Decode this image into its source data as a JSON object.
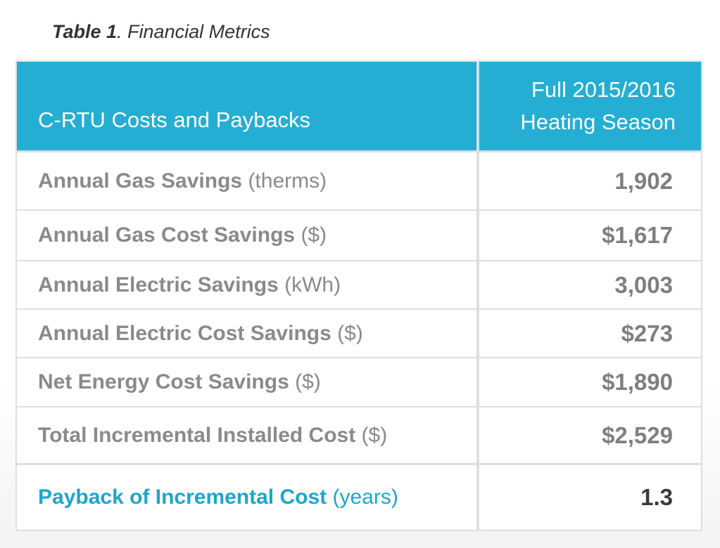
{
  "caption": {
    "bold": "Table 1",
    "rest": ". Financial Metrics"
  },
  "header": {
    "left": "C-RTU Costs and Paybacks",
    "right_line1": "Full 2015/2016",
    "right_line2": "Heating Season"
  },
  "rows": [
    {
      "label": "Annual Gas Savings",
      "unit": "(therms)",
      "value": "1,902"
    },
    {
      "label": "Annual Gas Cost Savings",
      "unit": "($)",
      "value": "$1,617"
    },
    {
      "label": "Annual Electric Savings",
      "unit": "(kWh)",
      "value": "3,003"
    },
    {
      "label": "Annual Electric Cost Savings",
      "unit": "($)",
      "value": "$273"
    },
    {
      "label": "Net Energy Cost Savings",
      "unit": "($)",
      "value": "$1,890"
    },
    {
      "label": "Total Incremental Installed Cost",
      "unit": "($)",
      "value": "$2,529"
    }
  ],
  "payback": {
    "label": "Payback of Incremental Cost",
    "unit": "(years)",
    "value": "1.3"
  },
  "colors": {
    "header_bg": "#24aed3",
    "accent": "#1ea6cc",
    "text_gray": "#8a8a8a",
    "border": "#dcdfe1"
  }
}
